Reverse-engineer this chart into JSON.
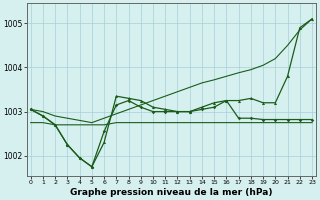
{
  "x": [
    0,
    1,
    2,
    3,
    4,
    5,
    6,
    7,
    8,
    9,
    10,
    11,
    12,
    13,
    14,
    15,
    16,
    17,
    18,
    19,
    20,
    21,
    22,
    23
  ],
  "series_flat": [
    1002.75,
    1002.75,
    1002.7,
    1002.7,
    1002.7,
    1002.7,
    1002.7,
    1002.75,
    1002.75,
    1002.75,
    1002.75,
    1002.75,
    1002.75,
    1002.75,
    1002.75,
    1002.75,
    1002.75,
    1002.75,
    1002.75,
    1002.75,
    1002.75,
    1002.75,
    1002.75,
    1002.75
  ],
  "series_diag": [
    1003.05,
    1003.0,
    1002.9,
    1002.85,
    1002.8,
    1002.75,
    1002.85,
    1002.95,
    1003.05,
    1003.15,
    1003.25,
    1003.35,
    1003.45,
    1003.55,
    1003.65,
    1003.72,
    1003.8,
    1003.88,
    1003.95,
    1004.05,
    1004.2,
    1004.5,
    1004.85,
    1005.1
  ],
  "series_dip": [
    1003.05,
    1002.9,
    1002.7,
    1002.25,
    1001.95,
    1001.75,
    1002.3,
    1003.35,
    1003.3,
    1003.25,
    1003.1,
    1003.05,
    1003.0,
    1003.0,
    1003.1,
    1003.2,
    1003.25,
    1003.25,
    1003.3,
    1003.2,
    1003.2,
    1003.8,
    1004.9,
    1005.1
  ],
  "series_mid": [
    1003.05,
    1002.9,
    1002.7,
    1002.25,
    1001.95,
    1001.75,
    1002.55,
    1003.15,
    1003.25,
    1003.1,
    1003.0,
    1003.0,
    1003.0,
    1003.0,
    1003.05,
    1003.1,
    1003.25,
    1002.85,
    1002.85,
    1002.82,
    1002.82,
    1002.82,
    1002.82,
    1002.82
  ],
  "line_color": "#1a5c1a",
  "bg_color": "#d6f0f0",
  "grid_color": "#a8d0d8",
  "xlabel": "Graphe pression niveau de la mer (hPa)",
  "ylim": [
    1001.55,
    1005.45
  ],
  "xlim": [
    -0.3,
    23.3
  ],
  "yticks": [
    1002,
    1003,
    1004,
    1005
  ],
  "xticks": [
    0,
    1,
    2,
    3,
    4,
    5,
    6,
    7,
    8,
    9,
    10,
    11,
    12,
    13,
    14,
    15,
    16,
    17,
    18,
    19,
    20,
    21,
    22,
    23
  ]
}
